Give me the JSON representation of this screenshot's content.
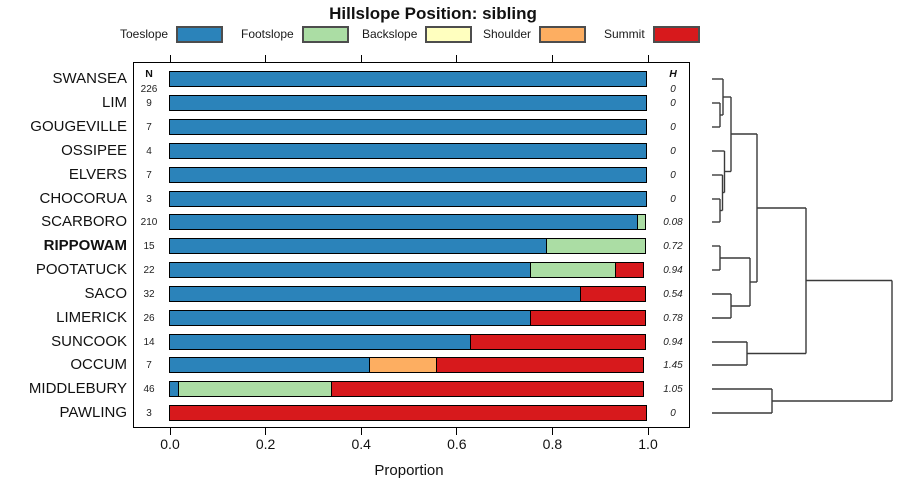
{
  "columns": {
    "n_header": "N",
    "h_header": "H"
  },
  "chart_data": {
    "type": "bar",
    "subtype": "horizontal-stacked-proportion",
    "title": "Hillslope Position: sibling",
    "xlabel": "Proportion",
    "xlim": [
      0,
      1
    ],
    "xticks": [
      0.0,
      0.2,
      0.4,
      0.6,
      0.8,
      1.0
    ],
    "xtick_labels": [
      "0.0",
      "0.2",
      "0.4",
      "0.6",
      "0.8",
      "1.0"
    ],
    "legend_position": "top",
    "grid": false,
    "categories": [
      "SWANSEA",
      "LIM",
      "GOUGEVILLE",
      "OSSIPEE",
      "ELVERS",
      "CHOCORUA",
      "SCARBORO",
      "RIPPOWAM",
      "POOTATUCK",
      "SACO",
      "LIMERICK",
      "SUNCOOK",
      "OCCUM",
      "MIDDLEBURY",
      "PAWLING"
    ],
    "bold_category": "RIPPOWAM",
    "n_values": [
      226,
      9,
      7,
      4,
      7,
      3,
      210,
      15,
      22,
      32,
      26,
      14,
      7,
      46,
      3
    ],
    "h_values": [
      "0",
      "0",
      "0",
      "0",
      "0",
      "0",
      "0.08",
      "0.72",
      "0.94",
      "0.54",
      "0.78",
      "0.94",
      "1.45",
      "1.05",
      "0"
    ],
    "series": [
      {
        "name": "Toeslope",
        "color": "#2B83BA",
        "values": [
          1,
          1,
          1,
          1,
          1,
          1,
          0.982,
          0.79,
          0.757,
          0.861,
          0.757,
          0.631,
          0.42,
          0.02,
          0
        ]
      },
      {
        "name": "Footslope",
        "color": "#ABDDA4",
        "values": [
          0,
          0,
          0,
          0,
          0,
          0,
          0.018,
          0.21,
          0.183,
          0,
          0,
          0,
          0,
          0.325,
          0
        ]
      },
      {
        "name": "Backslope",
        "color": "#FFFFBF",
        "values": [
          0,
          0,
          0,
          0,
          0,
          0,
          0,
          0,
          0,
          0,
          0,
          0,
          0,
          0,
          0
        ]
      },
      {
        "name": "Shoulder",
        "color": "#FDAE61",
        "values": [
          0,
          0,
          0,
          0,
          0,
          0,
          0,
          0,
          0,
          0,
          0,
          0,
          0.145,
          0,
          0
        ]
      },
      {
        "name": "Summit",
        "color": "#D7191C",
        "values": [
          0,
          0,
          0,
          0,
          0,
          0,
          0,
          0,
          0.06,
          0.139,
          0.243,
          0.369,
          0.435,
          0.655,
          1
        ]
      }
    ],
    "dendrogram": {
      "side": "right",
      "structure_newick": "(((((SWANSEA,(LIM,GOUGEVILLE)),(OSSIPEE,(ELVERS,(CHOCORUA,SCARBORO)))),((RIPPOWAM,POOTATUCK),(SACO,LIMERICK))),(SUNCOOK,OCCUM)),(MIDDLEBURY,PAWLING))",
      "segments": [
        [
          712,
          103,
          720,
          103
        ],
        [
          712,
          127,
          720,
          127
        ],
        [
          720,
          103,
          720,
          127
        ],
        [
          712,
          79,
          723,
          79
        ],
        [
          720,
          115,
          723,
          115
        ],
        [
          723,
          79,
          723,
          115
        ],
        [
          712,
          199,
          720,
          199
        ],
        [
          712,
          222,
          720,
          222
        ],
        [
          720,
          199,
          720,
          222
        ],
        [
          712,
          175,
          722.5,
          175
        ],
        [
          720,
          210.5,
          722.5,
          210.5
        ],
        [
          722.5,
          175,
          722.5,
          210.5
        ],
        [
          712,
          151,
          724.5,
          151
        ],
        [
          722.5,
          192.5,
          724.5,
          192.5
        ],
        [
          724.5,
          151,
          724.5,
          192.5
        ],
        [
          723,
          97,
          731,
          97
        ],
        [
          724.5,
          171.5,
          731,
          171.5
        ],
        [
          731,
          97,
          731,
          171.5
        ],
        [
          712,
          246,
          720,
          246
        ],
        [
          712,
          270,
          720,
          270
        ],
        [
          720,
          246,
          720,
          270
        ],
        [
          712,
          294,
          731,
          294
        ],
        [
          712,
          318,
          731,
          318
        ],
        [
          731,
          294,
          731,
          318
        ],
        [
          720,
          258,
          750,
          258
        ],
        [
          731,
          306,
          750,
          306
        ],
        [
          750,
          258,
          750,
          306
        ],
        [
          731,
          134,
          757,
          134
        ],
        [
          750,
          282,
          757,
          282
        ],
        [
          757,
          134,
          757,
          282
        ],
        [
          712,
          342,
          747,
          342
        ],
        [
          712,
          365,
          747,
          365
        ],
        [
          747,
          342,
          747,
          365
        ],
        [
          757,
          208,
          806,
          208
        ],
        [
          747,
          353.5,
          806,
          353.5
        ],
        [
          806,
          208,
          806,
          353.5
        ],
        [
          712,
          389,
          772,
          389
        ],
        [
          712,
          413,
          772,
          413
        ],
        [
          772,
          389,
          772,
          413
        ],
        [
          806,
          280.5,
          892,
          280.5
        ],
        [
          772,
          401,
          892,
          401
        ],
        [
          892,
          280.5,
          892,
          401
        ]
      ]
    }
  }
}
